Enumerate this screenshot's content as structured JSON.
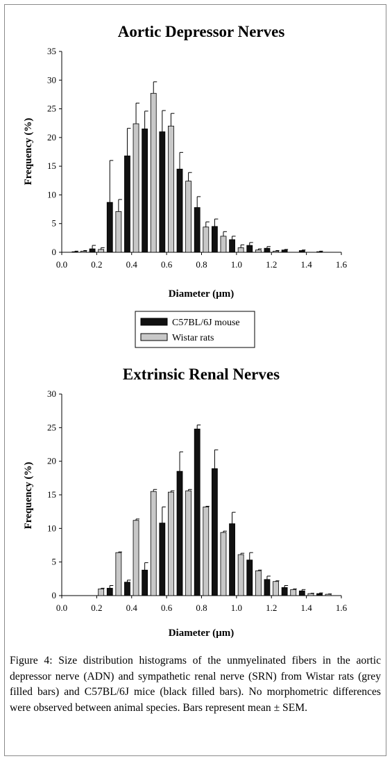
{
  "figure": {
    "caption_label": "Figure 4:",
    "caption_text": " Size distribution histograms of the unmyelinated fibers in the aortic depressor nerve (ADN) and sympathetic renal nerve (SRN) from Wistar rats (grey filled bars) and C57BL/6J mice (black filled bars). No morphometric differences were observed between animal species. Bars represent mean ± SEM."
  },
  "legend": {
    "entries": [
      "C57BL/6J mouse",
      "Wistar rats"
    ]
  },
  "colors": {
    "mouse": "#111111",
    "rat": "#c8c8c8",
    "stroke": "#000000"
  },
  "chart_data": [
    {
      "type": "bar",
      "title": "Aortic Depressor Nerves",
      "xlabel": "Diameter (µm)",
      "ylabel": "Frequency (%)",
      "xlim": [
        0.0,
        1.6
      ],
      "ylim": [
        0,
        35
      ],
      "xticks": [
        "0.0",
        "0.2",
        "0.4",
        "0.6",
        "0.8",
        "1.0",
        "1.2",
        "1.4",
        "1.6"
      ],
      "yticks": [
        "0",
        "5",
        "10",
        "15",
        "20",
        "25",
        "30",
        "35"
      ],
      "grid": false,
      "error_bars": "SEM",
      "series": [
        {
          "name": "C57BL/6J mouse",
          "color": "#111111",
          "x": [
            0.075,
            0.175,
            0.275,
            0.375,
            0.475,
            0.575,
            0.675,
            0.775,
            0.875,
            0.975,
            1.075,
            1.175,
            1.275,
            1.375,
            1.475
          ],
          "values": [
            0.1,
            0.6,
            8.7,
            16.8,
            21.5,
            21.0,
            14.5,
            7.8,
            4.5,
            2.2,
            1.2,
            0.7,
            0.4,
            0.3,
            0.1
          ],
          "errors": [
            0.1,
            0.6,
            7.3,
            4.8,
            3.1,
            3.7,
            2.9,
            1.9,
            1.3,
            0.6,
            0.5,
            0.3,
            0.1,
            0.1,
            0.1
          ]
        },
        {
          "name": "Wistar rats",
          "color": "#c8c8c8",
          "x": [
            0.125,
            0.225,
            0.325,
            0.425,
            0.525,
            0.625,
            0.725,
            0.825,
            0.925,
            1.025,
            1.125,
            1.225
          ],
          "values": [
            0.2,
            0.5,
            7.1,
            22.4,
            27.7,
            22.0,
            12.4,
            4.4,
            2.8,
            0.8,
            0.4,
            0.2
          ],
          "errors": [
            0.1,
            0.3,
            2.1,
            3.6,
            2.0,
            2.2,
            1.5,
            0.9,
            0.8,
            0.5,
            0.2,
            0.1
          ]
        }
      ]
    },
    {
      "type": "bar",
      "title": "Extrinsic Renal Nerves",
      "xlabel": "Diameter (µm)",
      "ylabel": "Frequency (%)",
      "xlim": [
        0.0,
        1.6
      ],
      "ylim": [
        0,
        30
      ],
      "xticks": [
        "0.0",
        "0.2",
        "0.4",
        "0.6",
        "0.8",
        "1.0",
        "1.2",
        "1.4",
        "1.6"
      ],
      "yticks": [
        "0",
        "5",
        "10",
        "15",
        "20",
        "25",
        "30"
      ],
      "grid": false,
      "error_bars": "SEM",
      "series": [
        {
          "name": "C57BL/6J mouse",
          "color": "#111111",
          "x": [
            0.275,
            0.375,
            0.475,
            0.575,
            0.675,
            0.775,
            0.875,
            0.975,
            1.075,
            1.175,
            1.275,
            1.375,
            1.475
          ],
          "values": [
            1.1,
            2.0,
            3.8,
            10.8,
            18.5,
            24.8,
            18.9,
            10.7,
            5.3,
            2.4,
            1.2,
            0.7,
            0.3
          ],
          "errors": [
            0.4,
            0.3,
            1.1,
            2.4,
            2.9,
            0.6,
            2.8,
            1.7,
            1.1,
            0.5,
            0.3,
            0.2,
            0.1
          ]
        },
        {
          "name": "Wistar rats",
          "color": "#c8c8c8",
          "x": [
            0.225,
            0.325,
            0.425,
            0.525,
            0.625,
            0.725,
            0.825,
            0.925,
            1.025,
            1.125,
            1.225,
            1.325,
            1.425,
            1.525
          ],
          "values": [
            1.0,
            6.4,
            11.2,
            15.5,
            15.4,
            15.6,
            13.2,
            9.4,
            6.1,
            3.7,
            2.1,
            0.9,
            0.3,
            0.2
          ],
          "errors": [
            0.1,
            0.1,
            0.2,
            0.3,
            0.2,
            0.2,
            0.1,
            0.2,
            0.2,
            0.1,
            0.1,
            0.1,
            0.05,
            0.05
          ]
        }
      ]
    }
  ]
}
